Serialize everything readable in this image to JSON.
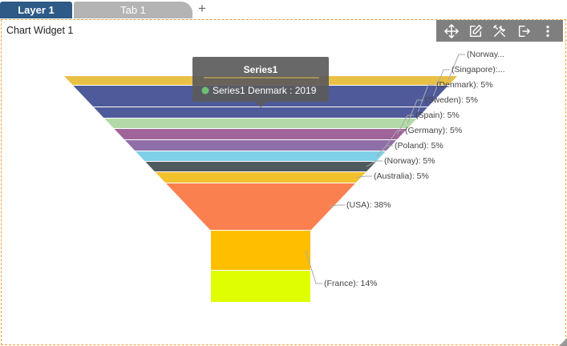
{
  "tabs": {
    "layer_label": "Layer 1",
    "tab_label": "Tab 1",
    "add_label": "+"
  },
  "widget": {
    "title": "Chart Widget 1",
    "toolbar_icons": [
      "move-icon",
      "edit-icon",
      "tools-icon",
      "export-icon",
      "more-vertical-icon"
    ]
  },
  "tooltip": {
    "title": "Series1",
    "text": "Series1 Denmark : 2019",
    "marker_color": "#6fbf73"
  },
  "chart_data": {
    "type": "funnel",
    "series": [
      {
        "name": "Series1",
        "points": [
          {
            "label": "(Norway...",
            "color": "#e9c046"
          },
          {
            "label": "(Singapore):...",
            "color": "#4e5a99"
          },
          {
            "label": "(Denmark): 5%",
            "value": 5,
            "color": "#4e5a99"
          },
          {
            "label": "(Sweden): 5%",
            "value": 5,
            "color": "#b3d9a8"
          },
          {
            "label": "(Spain): 5%",
            "value": 5,
            "color": "#a0639a"
          },
          {
            "label": "(Germany): 5%",
            "value": 5,
            "color": "#8f6fa8"
          },
          {
            "label": "(Poland): 5%",
            "value": 5,
            "color": "#7ecfe8"
          },
          {
            "label": "(Norway): 5%",
            "value": 5,
            "color": "#4f5a5e"
          },
          {
            "label": "(Australia): 5%",
            "value": 5,
            "color": "#f2c12e"
          },
          {
            "label": "(USA): 38%",
            "value": 38,
            "color": "#fa8050"
          },
          {
            "label": "(France): 14%",
            "value": 14,
            "color": "#ffbf00"
          },
          {
            "label": "",
            "color": "#dfff00"
          }
        ]
      }
    ]
  }
}
